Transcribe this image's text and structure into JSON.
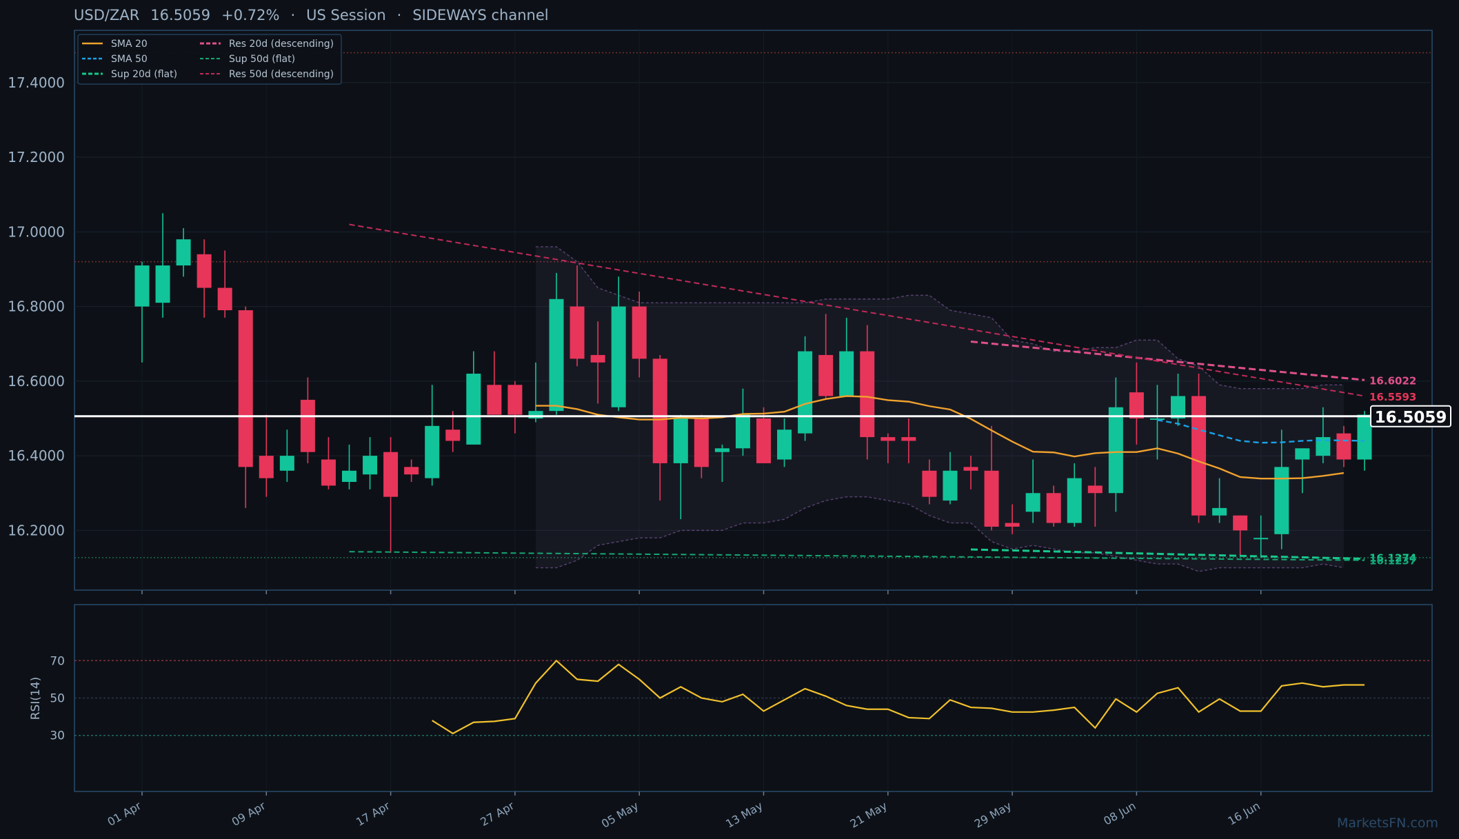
{
  "header": {
    "pair": "USD/ZAR",
    "price": "16.5059",
    "change": "+0.72%",
    "sep1": "·",
    "session": "US Session",
    "sep2": "·",
    "regime": "SIDEWAYS channel"
  },
  "watermark": "MarketsFN.com",
  "colors": {
    "background": "#0d1117",
    "panel_border": "#2a4a6b",
    "bull": "#12c49a",
    "bear": "#e8355a",
    "sma20": "#f0a22e",
    "sma50": "#1aa3e8",
    "res20": "#e0508a",
    "res50": "#c42a5a",
    "sup": "#17c98c",
    "rsi": "#f2c12e",
    "current_price_line": "#ffffff",
    "band": "#6a4e88"
  },
  "chart_data": [
    {
      "type": "candlestick",
      "xlabel": "",
      "ylabel": "",
      "ylim": [
        16.04,
        17.54
      ],
      "x_ticks": [
        "01 Apr",
        "09 Apr",
        "17 Apr",
        "27 Apr",
        "05 May",
        "13 May",
        "21 May",
        "29 May",
        "08 Jun",
        "16 Jun"
      ],
      "y_ticks": [
        "16.2000",
        "16.4000",
        "16.6000",
        "16.8000",
        "17.0000",
        "17.2000",
        "17.4000"
      ],
      "current_price": 16.5059,
      "current_price_label": "16.5059",
      "legend": {
        "position": "top-left",
        "entries": [
          "SMA 20",
          "SMA 50",
          "Sup 20d (flat)",
          "Res 20d (descending)",
          "Sup 50d (flat)",
          "Res 50d (descending)"
        ]
      },
      "candles": [
        {
          "o": 16.8,
          "h": 16.92,
          "l": 16.65,
          "c": 16.91
        },
        {
          "o": 16.81,
          "h": 17.05,
          "l": 16.77,
          "c": 16.91
        },
        {
          "o": 16.91,
          "h": 17.01,
          "l": 16.88,
          "c": 16.98
        },
        {
          "o": 16.94,
          "h": 16.98,
          "l": 16.77,
          "c": 16.85
        },
        {
          "o": 16.85,
          "h": 16.95,
          "l": 16.77,
          "c": 16.79
        },
        {
          "o": 16.79,
          "h": 16.8,
          "l": 16.26,
          "c": 16.37
        },
        {
          "o": 16.4,
          "h": 16.51,
          "l": 16.29,
          "c": 16.34
        },
        {
          "o": 16.36,
          "h": 16.47,
          "l": 16.33,
          "c": 16.4
        },
        {
          "o": 16.55,
          "h": 16.61,
          "l": 16.38,
          "c": 16.41
        },
        {
          "o": 16.39,
          "h": 16.45,
          "l": 16.31,
          "c": 16.32
        },
        {
          "o": 16.33,
          "h": 16.43,
          "l": 16.31,
          "c": 16.36
        },
        {
          "o": 16.35,
          "h": 16.45,
          "l": 16.31,
          "c": 16.4
        },
        {
          "o": 16.41,
          "h": 16.45,
          "l": 16.14,
          "c": 16.29
        },
        {
          "o": 16.37,
          "h": 16.39,
          "l": 16.33,
          "c": 16.35
        },
        {
          "o": 16.34,
          "h": 16.59,
          "l": 16.32,
          "c": 16.48
        },
        {
          "o": 16.47,
          "h": 16.52,
          "l": 16.41,
          "c": 16.44
        },
        {
          "o": 16.43,
          "h": 16.68,
          "l": 16.43,
          "c": 16.62
        },
        {
          "o": 16.59,
          "h": 16.68,
          "l": 16.51,
          "c": 16.51
        },
        {
          "o": 16.59,
          "h": 16.6,
          "l": 16.46,
          "c": 16.51
        },
        {
          "o": 16.5,
          "h": 16.65,
          "l": 16.49,
          "c": 16.52
        },
        {
          "o": 16.52,
          "h": 16.89,
          "l": 16.51,
          "c": 16.82
        },
        {
          "o": 16.8,
          "h": 16.91,
          "l": 16.64,
          "c": 16.66
        },
        {
          "o": 16.67,
          "h": 16.76,
          "l": 16.54,
          "c": 16.65
        },
        {
          "o": 16.53,
          "h": 16.88,
          "l": 16.52,
          "c": 16.8
        },
        {
          "o": 16.8,
          "h": 16.84,
          "l": 16.61,
          "c": 16.66
        },
        {
          "o": 16.66,
          "h": 16.67,
          "l": 16.28,
          "c": 16.38
        },
        {
          "o": 16.38,
          "h": 16.51,
          "l": 16.23,
          "c": 16.5
        },
        {
          "o": 16.5,
          "h": 16.51,
          "l": 16.34,
          "c": 16.37
        },
        {
          "o": 16.41,
          "h": 16.43,
          "l": 16.33,
          "c": 16.42
        },
        {
          "o": 16.42,
          "h": 16.58,
          "l": 16.4,
          "c": 16.51
        },
        {
          "o": 16.5,
          "h": 16.53,
          "l": 16.38,
          "c": 16.38
        },
        {
          "o": 16.39,
          "h": 16.5,
          "l": 16.37,
          "c": 16.47
        },
        {
          "o": 16.46,
          "h": 16.72,
          "l": 16.44,
          "c": 16.68
        },
        {
          "o": 16.67,
          "h": 16.78,
          "l": 16.55,
          "c": 16.56
        },
        {
          "o": 16.56,
          "h": 16.77,
          "l": 16.56,
          "c": 16.68
        },
        {
          "o": 16.68,
          "h": 16.75,
          "l": 16.39,
          "c": 16.45
        },
        {
          "o": 16.45,
          "h": 16.46,
          "l": 16.38,
          "c": 16.44
        },
        {
          "o": 16.45,
          "h": 16.5,
          "l": 16.38,
          "c": 16.44
        },
        {
          "o": 16.36,
          "h": 16.39,
          "l": 16.27,
          "c": 16.29
        },
        {
          "o": 16.28,
          "h": 16.41,
          "l": 16.27,
          "c": 16.36
        },
        {
          "o": 16.37,
          "h": 16.4,
          "l": 16.31,
          "c": 16.36
        },
        {
          "o": 16.36,
          "h": 16.48,
          "l": 16.2,
          "c": 16.21
        },
        {
          "o": 16.22,
          "h": 16.27,
          "l": 16.19,
          "c": 16.21
        },
        {
          "o": 16.25,
          "h": 16.39,
          "l": 16.22,
          "c": 16.3
        },
        {
          "o": 16.3,
          "h": 16.32,
          "l": 16.21,
          "c": 16.22
        },
        {
          "o": 16.22,
          "h": 16.38,
          "l": 16.21,
          "c": 16.34
        },
        {
          "o": 16.32,
          "h": 16.37,
          "l": 16.21,
          "c": 16.3
        },
        {
          "o": 16.3,
          "h": 16.61,
          "l": 16.25,
          "c": 16.53
        },
        {
          "o": 16.57,
          "h": 16.65,
          "l": 16.43,
          "c": 16.5
        },
        {
          "o": 16.5,
          "h": 16.59,
          "l": 16.39,
          "c": 16.5
        },
        {
          "o": 16.5,
          "h": 16.62,
          "l": 16.48,
          "c": 16.56
        },
        {
          "o": 16.56,
          "h": 16.62,
          "l": 16.22,
          "c": 16.24
        },
        {
          "o": 16.24,
          "h": 16.34,
          "l": 16.22,
          "c": 16.26
        },
        {
          "o": 16.24,
          "h": 16.24,
          "l": 16.13,
          "c": 16.2
        },
        {
          "o": 16.18,
          "h": 16.24,
          "l": 16.13,
          "c": 16.18
        },
        {
          "o": 16.19,
          "h": 16.47,
          "l": 16.15,
          "c": 16.37
        },
        {
          "o": 16.39,
          "h": 16.42,
          "l": 16.3,
          "c": 16.42
        },
        {
          "o": 16.4,
          "h": 16.53,
          "l": 16.38,
          "c": 16.45
        },
        {
          "o": 16.46,
          "h": 16.48,
          "l": 16.37,
          "c": 16.39
        },
        {
          "o": 16.39,
          "h": 16.52,
          "l": 16.36,
          "c": 16.51
        }
      ],
      "series": [
        {
          "name": "SMA 20",
          "start_index": 19,
          "values": [
            16.534,
            16.534,
            16.525,
            16.51,
            16.503,
            16.497,
            16.497,
            16.502,
            16.5,
            16.503,
            16.512,
            16.513,
            16.518,
            16.539,
            16.552,
            16.56,
            16.558,
            16.549,
            16.545,
            16.533,
            16.524,
            16.499,
            16.468,
            16.438,
            16.411,
            16.409,
            16.398,
            16.407,
            16.41,
            16.41,
            16.42,
            16.406,
            16.385,
            16.366,
            16.343,
            16.339,
            16.339,
            16.34,
            16.346,
            16.354
          ]
        },
        {
          "name": "SMA 50",
          "start_index": 49,
          "values": [
            16.496,
            16.486,
            16.47,
            16.455,
            16.44,
            16.435,
            16.436,
            16.44,
            16.442,
            16.441,
            16.44
          ]
        },
        {
          "name": "Res 20d (descending)",
          "start_index": 40,
          "values": [
            16.706,
            16.603
          ]
        },
        {
          "name": "Sup 20d (flat)",
          "start_index": 40,
          "values": [
            16.149,
            16.124
          ]
        },
        {
          "name": "Sup 50d (flat)",
          "start_index": 10,
          "values": [
            16.143,
            16.12
          ]
        },
        {
          "name": "Res 50d (descending)",
          "start_index": 10,
          "values": [
            17.02,
            16.56
          ]
        }
      ],
      "band": {
        "start_index": 19,
        "upper": [
          16.96,
          16.96,
          16.92,
          16.85,
          16.83,
          16.81,
          16.81,
          16.81,
          16.81,
          16.81,
          16.81,
          16.81,
          16.81,
          16.81,
          16.82,
          16.82,
          16.82,
          16.82,
          16.83,
          16.83,
          16.79,
          16.78,
          16.77,
          16.71,
          16.7,
          16.68,
          16.68,
          16.69,
          16.69,
          16.71,
          16.71,
          16.66,
          16.64,
          16.59,
          16.58,
          16.58,
          16.58,
          16.58,
          16.59,
          16.59
        ],
        "lower": [
          16.1,
          16.1,
          16.12,
          16.16,
          16.17,
          16.18,
          16.18,
          16.2,
          16.2,
          16.2,
          16.22,
          16.22,
          16.23,
          16.26,
          16.28,
          16.29,
          16.29,
          16.28,
          16.27,
          16.24,
          16.22,
          16.22,
          16.17,
          16.15,
          16.16,
          16.15,
          16.14,
          16.14,
          16.13,
          16.12,
          16.11,
          16.11,
          16.09,
          16.1,
          16.1,
          16.1,
          16.1,
          16.1,
          16.11,
          16.1
        ]
      },
      "hlines": [
        {
          "value": 17.48,
          "color": "#7a2e2e"
        },
        {
          "value": 16.92,
          "color": "#7a2e2e"
        },
        {
          "value": 16.127,
          "color": "#1c6b4e"
        }
      ],
      "right_labels": [
        {
          "text": "16.6022",
          "value": 16.6022,
          "color": "#e0508a"
        },
        {
          "text": "16.5593",
          "value": 16.5593,
          "color": "#e8355a"
        },
        {
          "text": "16.1274",
          "value": 16.1274,
          "color": "#17c98c"
        },
        {
          "text": "16.1237",
          "value": 16.1237,
          "color": "#12a878"
        }
      ]
    },
    {
      "type": "line",
      "ylabel": "RSI(14)",
      "ylim": [
        0,
        100
      ],
      "y_ticks": [
        "30",
        "50",
        "70"
      ],
      "levels": [
        {
          "value": 70,
          "color": "#8b2e3e"
        },
        {
          "value": 50,
          "color": "#2a3545"
        },
        {
          "value": 30,
          "color": "#1f6b62"
        }
      ],
      "series": [
        {
          "name": "RSI(14)",
          "start_index": 14,
          "values": [
            38,
            31,
            37,
            37.5,
            39,
            58,
            70,
            60,
            59,
            68,
            60,
            50,
            56,
            50,
            48,
            52,
            43,
            49,
            55,
            51,
            46,
            44,
            44,
            39.5,
            39,
            49,
            45,
            44.5,
            42.5,
            42.5,
            43.5,
            45,
            34,
            49.5,
            42.5,
            52.5,
            55.5,
            42.5,
            49.5,
            43,
            43,
            56.5,
            58,
            56,
            57,
            57
          ]
        }
      ]
    }
  ]
}
